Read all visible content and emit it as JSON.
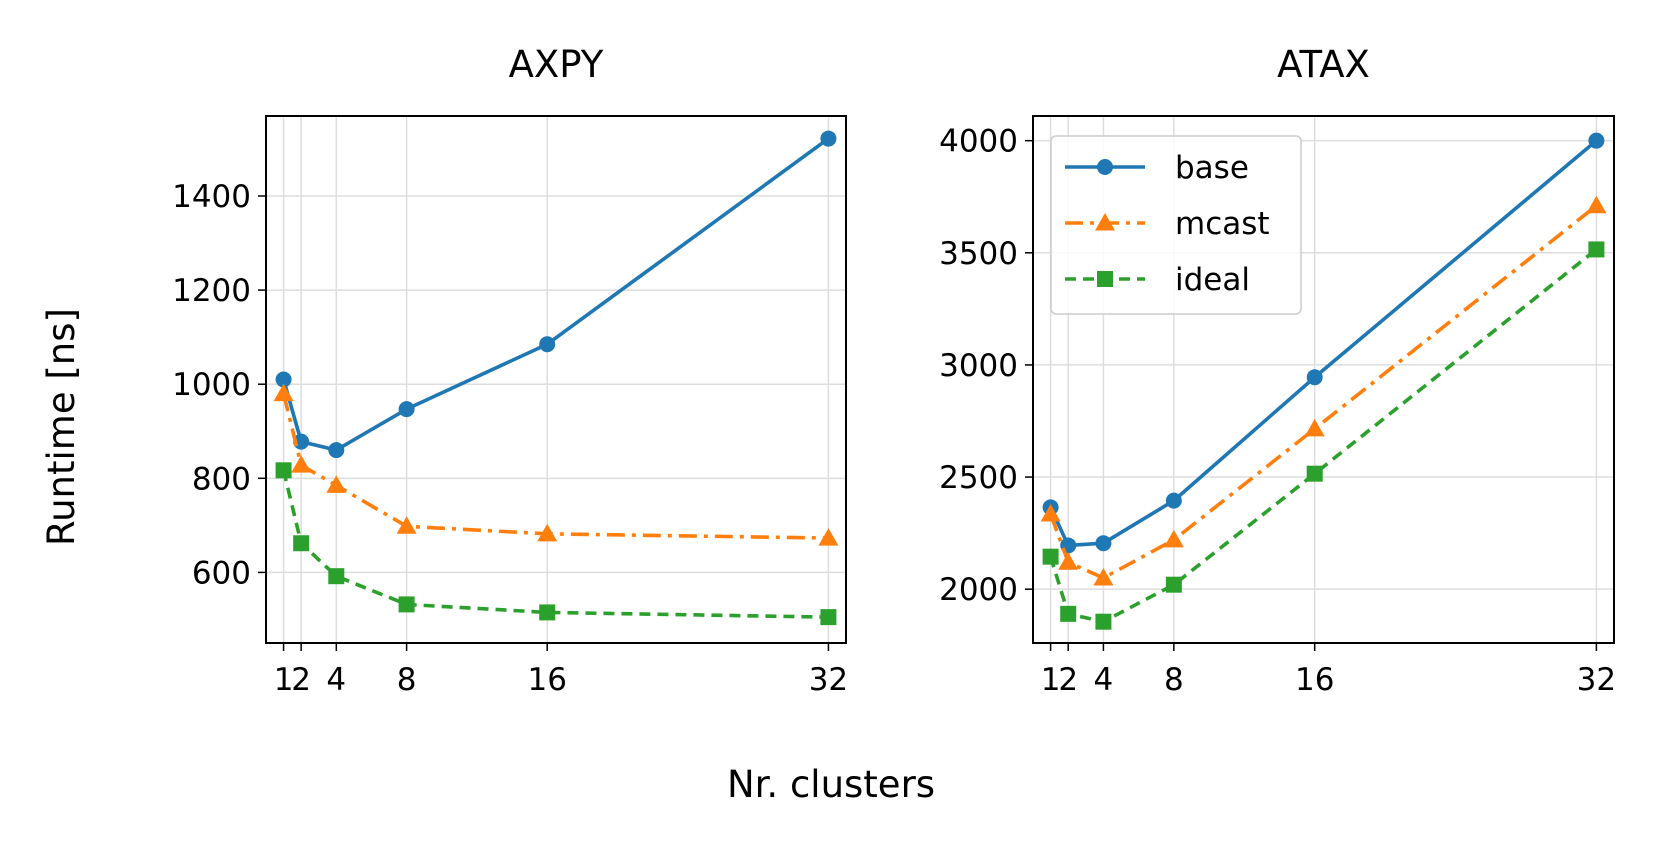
{
  "figure": {
    "ylabel": "Runtime [ns]",
    "xlabel": "Nr. clusters"
  },
  "legend": {
    "entries": [
      "base",
      "mcast",
      "ideal"
    ]
  },
  "chart_data": [
    {
      "type": "line",
      "title": "AXPY",
      "x": [
        1,
        2,
        4,
        8,
        16,
        32
      ],
      "xticks": [
        1,
        2,
        4,
        8,
        16,
        32
      ],
      "xtick_labels": [
        "1",
        "2",
        "4",
        "8",
        "16",
        "32"
      ],
      "xlim": [
        0,
        33
      ],
      "ylim": [
        450,
        1570
      ],
      "yticks": [
        600,
        800,
        1000,
        1200,
        1400
      ],
      "ytick_labels": [
        "600",
        "800",
        "1000",
        "1200",
        "1400"
      ],
      "grid": true,
      "series": [
        {
          "name": "base",
          "values": [
            1010,
            878,
            860,
            947,
            1085,
            1522
          ],
          "color": "#1f77b4",
          "marker": "circle",
          "dash": "solid"
        },
        {
          "name": "mcast",
          "values": [
            980,
            828,
            785,
            698,
            682,
            673
          ],
          "color": "#ff7f0e",
          "marker": "triangle",
          "dash": "dashdot"
        },
        {
          "name": "ideal",
          "values": [
            817,
            662,
            592,
            532,
            515,
            505
          ],
          "color": "#2ca02c",
          "marker": "square",
          "dash": "dashed"
        }
      ]
    },
    {
      "type": "line",
      "title": "ATAX",
      "x": [
        1,
        2,
        4,
        8,
        16,
        32
      ],
      "xticks": [
        1,
        2,
        4,
        8,
        16,
        32
      ],
      "xtick_labels": [
        "1",
        "2",
        "4",
        "8",
        "16",
        "32"
      ],
      "xlim": [
        0,
        33
      ],
      "ylim": [
        1760,
        4110
      ],
      "yticks": [
        2000,
        2500,
        3000,
        3500,
        4000
      ],
      "ytick_labels": [
        "2000",
        "2500",
        "3000",
        "3500",
        "4000"
      ],
      "grid": true,
      "legend_position": "top-left",
      "series": [
        {
          "name": "base",
          "values": [
            2365,
            2195,
            2205,
            2395,
            2945,
            4000
          ],
          "color": "#1f77b4",
          "marker": "circle",
          "dash": "solid"
        },
        {
          "name": "mcast",
          "values": [
            2335,
            2120,
            2050,
            2220,
            2715,
            3710
          ],
          "color": "#ff7f0e",
          "marker": "triangle",
          "dash": "dashdot"
        },
        {
          "name": "ideal",
          "values": [
            2145,
            1890,
            1855,
            2020,
            2515,
            3515
          ],
          "color": "#2ca02c",
          "marker": "square",
          "dash": "dashed"
        }
      ]
    }
  ]
}
